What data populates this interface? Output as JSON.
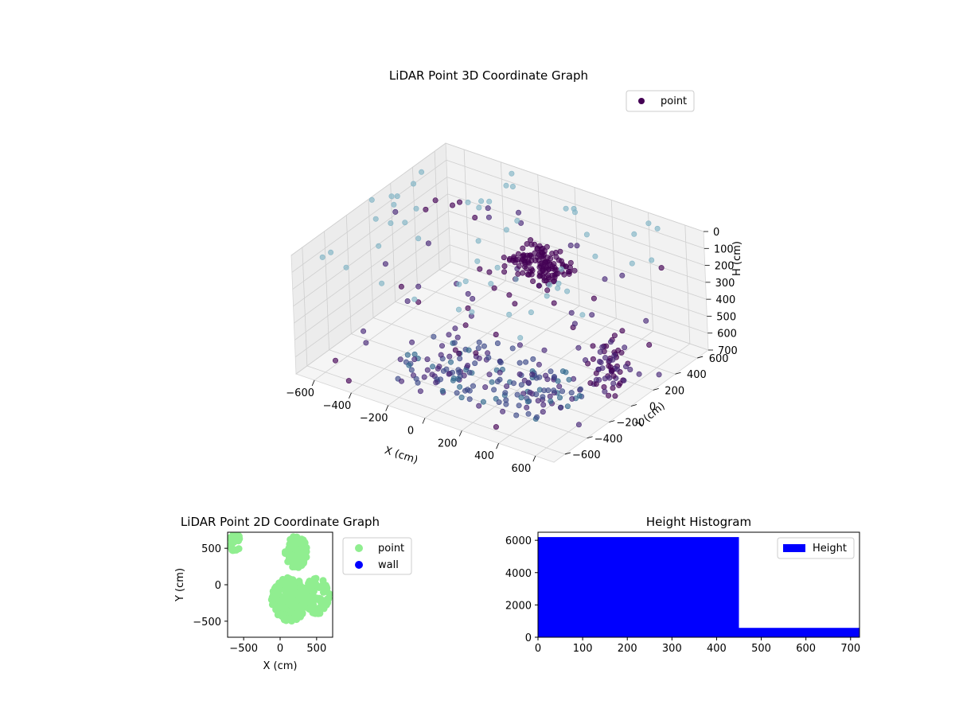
{
  "chart_data": [
    {
      "type": "scatter",
      "title": "LiDAR Point 3D Coordinate Graph",
      "xlabel": "X (cm)",
      "ylabel": "Y (cm)",
      "zlabel": "H (cm)",
      "x_ticks": [
        "−600",
        "−400",
        "−200",
        "0",
        "200",
        "400",
        "600"
      ],
      "y_ticks": [
        "−600",
        "−400",
        "−200",
        "0",
        "200",
        "400",
        "600"
      ],
      "z_ticks": [
        "0",
        "100",
        "200",
        "300",
        "400",
        "500",
        "600",
        "700"
      ],
      "xlim": [
        -700,
        700
      ],
      "ylim": [
        -700,
        700
      ],
      "zlim": [
        0,
        700
      ],
      "z_inverted": true,
      "colormap": "viridis (colored by H)",
      "legend": {
        "label": "point",
        "placement": "top-right",
        "color": "#440154"
      },
      "clusters": [
        {
          "description": "dense floor points",
          "x_range": [
            -300,
            500
          ],
          "y_range": [
            -500,
            0
          ],
          "h_range": [
            560,
            700
          ]
        },
        {
          "description": "dense cluster",
          "x_range": [
            0,
            250
          ],
          "y_range": [
            50,
            300
          ],
          "h_range": [
            100,
            220
          ]
        },
        {
          "description": "wall patch",
          "x_range": [
            500,
            650
          ],
          "y_range": [
            -100,
            100
          ],
          "h_range": [
            400,
            650
          ]
        },
        {
          "description": "sparse ceiling points",
          "x_range": [
            -700,
            700
          ],
          "y_range": [
            -700,
            700
          ],
          "h_range": [
            0,
            50
          ]
        }
      ]
    },
    {
      "type": "scatter",
      "title": "LiDAR Point 2D Coordinate Graph",
      "xlabel": "X (cm)",
      "ylabel": "Y (cm)",
      "x_ticks": [
        "−500",
        "0",
        "500"
      ],
      "y_ticks": [
        "500",
        "0",
        "−500"
      ],
      "xlim": [
        -720,
        720
      ],
      "ylim": [
        -720,
        720
      ],
      "series": [
        {
          "name": "point",
          "color": "#90ee90"
        },
        {
          "name": "wall",
          "color": "#0000ff"
        }
      ],
      "legend": {
        "placement": "outside-right"
      }
    },
    {
      "type": "bar",
      "title": "Height Histogram",
      "bins": [
        {
          "from": 0,
          "to": 450,
          "count": 6200
        },
        {
          "from": 450,
          "to": 720,
          "count": 580
        }
      ],
      "x_ticks": [
        "0",
        "100",
        "200",
        "300",
        "400",
        "500",
        "600",
        "700"
      ],
      "y_ticks": [
        "0",
        "2000",
        "4000",
        "6000"
      ],
      "xlim": [
        0,
        720
      ],
      "ylim": [
        0,
        6500
      ],
      "series": [
        {
          "name": "Height",
          "color": "#0000ff"
        }
      ],
      "legend": {
        "placement": "top-right"
      }
    }
  ]
}
